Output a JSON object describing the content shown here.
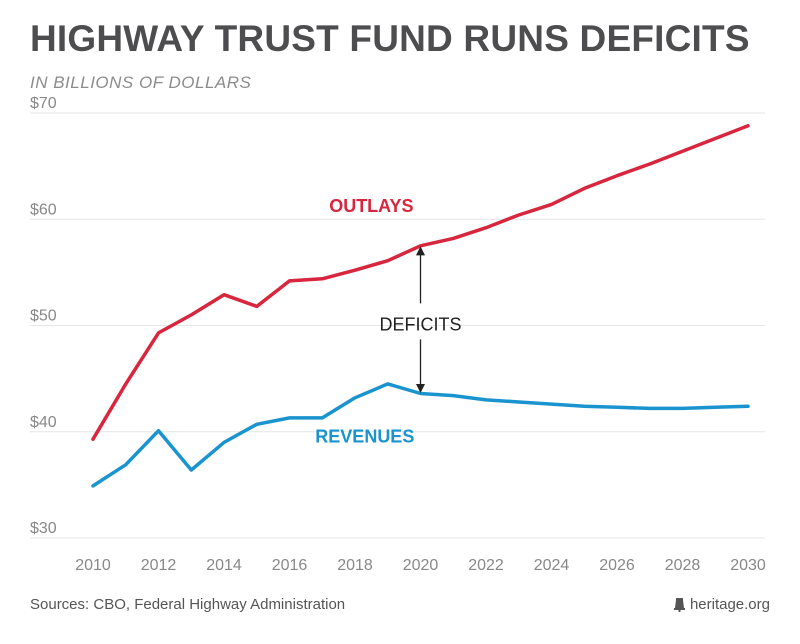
{
  "title": "HIGHWAY TRUST FUND RUNS DEFICITS",
  "subtitle": "IN BILLIONS OF DOLLARS",
  "footer": {
    "sources": "Sources: CBO, Federal Highway Administration",
    "brand": "heritage.org",
    "brand_icon": "liberty-bell-icon"
  },
  "colors": {
    "outlays": "#d7263d",
    "revenues": "#1a94cf",
    "grid": "#e6e6e6",
    "axis_text": "#888888",
    "annotation": "#222222"
  },
  "chart_data": {
    "type": "line",
    "title": "HIGHWAY TRUST FUND RUNS DEFICITS",
    "subtitle": "IN BILLIONS OF DOLLARS",
    "xlabel": "",
    "ylabel": "",
    "x": [
      2010,
      2011,
      2012,
      2013,
      2014,
      2015,
      2016,
      2017,
      2018,
      2019,
      2020,
      2021,
      2022,
      2023,
      2024,
      2025,
      2026,
      2027,
      2028,
      2029,
      2030
    ],
    "xlim": [
      2010,
      2030
    ],
    "ylim": [
      30,
      70
    ],
    "x_ticks": [
      2010,
      2012,
      2014,
      2016,
      2018,
      2020,
      2022,
      2024,
      2026,
      2028,
      2030
    ],
    "x_tick_labels": [
      "2010",
      "2012",
      "2014",
      "2016",
      "2018",
      "2020",
      "2022",
      "2024",
      "2026",
      "2028",
      "2030"
    ],
    "y_ticks": [
      30,
      40,
      50,
      60,
      70
    ],
    "y_tick_labels": [
      "$30",
      "$40",
      "$50",
      "$60",
      "$70"
    ],
    "grid": true,
    "series": [
      {
        "name": "OUTLAYS",
        "color": "#d7263d",
        "values": [
          39.3,
          44.5,
          49.3,
          51.0,
          52.9,
          51.8,
          54.2,
          54.4,
          55.2,
          56.1,
          57.5,
          58.2,
          59.2,
          60.4,
          61.4,
          62.9,
          64.1,
          65.2,
          66.4,
          67.6,
          68.8
        ]
      },
      {
        "name": "REVENUES",
        "color": "#1a94cf",
        "values": [
          34.9,
          36.9,
          40.1,
          36.4,
          39.0,
          40.7,
          41.3,
          41.3,
          43.2,
          44.5,
          43.6,
          43.4,
          43.0,
          42.8,
          42.6,
          42.4,
          42.3,
          42.2,
          42.2,
          42.3,
          42.4
        ]
      }
    ],
    "annotations": [
      {
        "text": "DEFICITS",
        "x": 2020,
        "y": 50.2,
        "arrow_up_to": 57.4,
        "arrow_down_to": 43.7
      }
    ]
  }
}
